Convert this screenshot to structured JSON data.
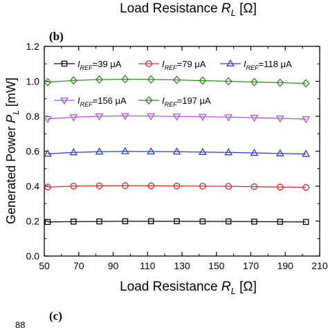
{
  "top_label": {
    "prefix": "Load Resistance ",
    "var": "R",
    "sub": "L",
    "unit": " [Ω]"
  },
  "panel_b": "(b)",
  "panel_c": "(c)",
  "next_tick": "88",
  "chart_data": {
    "type": "line",
    "title": "",
    "xlabel": {
      "prefix": "Load Resistance ",
      "var": "R",
      "sub": "L",
      "unit": " [Ω]"
    },
    "ylabel": {
      "prefix": "Generated Power ",
      "var": "P",
      "sub": "L",
      "unit": " [mW]"
    },
    "xlim": [
      50,
      210
    ],
    "ylim": [
      0.0,
      1.2
    ],
    "xticks": [
      "50",
      "70",
      "90",
      "110",
      "130",
      "150",
      "170",
      "190",
      "210"
    ],
    "yticks": [
      "0.0",
      "0.2",
      "0.4",
      "0.6",
      "0.8",
      "1.0",
      "1.2"
    ],
    "x": [
      52,
      67,
      82,
      97,
      112,
      127,
      142,
      157,
      172,
      187,
      202
    ],
    "grid": false,
    "legend_position": "top",
    "series": [
      {
        "legend_var": "I",
        "legend_sub": "REF",
        "legend_value": "=39 μA",
        "color": "#000000",
        "marker": "square",
        "values": [
          0.195,
          0.197,
          0.198,
          0.199,
          0.199,
          0.199,
          0.198,
          0.198,
          0.197,
          0.196,
          0.195
        ]
      },
      {
        "legend_var": "I",
        "legend_sub": "REF",
        "legend_value": "=79 μA",
        "color": "#e8262a",
        "marker": "circle",
        "values": [
          0.395,
          0.4,
          0.402,
          0.403,
          0.402,
          0.401,
          0.4,
          0.399,
          0.397,
          0.395,
          0.393
        ]
      },
      {
        "legend_var": "I",
        "legend_sub": "REF",
        "legend_value": "=118 μA",
        "color": "#2a3bd9",
        "marker": "triangle-up",
        "values": [
          0.585,
          0.593,
          0.597,
          0.599,
          0.598,
          0.597,
          0.595,
          0.593,
          0.59,
          0.587,
          0.584
        ]
      },
      {
        "legend_var": "I",
        "legend_sub": "REF",
        "legend_value": "=156 μA",
        "color": "#b44fe0",
        "marker": "triangle-down",
        "values": [
          0.785,
          0.795,
          0.8,
          0.802,
          0.801,
          0.799,
          0.797,
          0.795,
          0.792,
          0.788,
          0.784
        ]
      },
      {
        "legend_var": "I",
        "legend_sub": "REF",
        "legend_value": "=197 μA",
        "color": "#2e8b1f",
        "marker": "diamond",
        "values": [
          0.995,
          1.005,
          1.01,
          1.012,
          1.011,
          1.008,
          1.004,
          1.0,
          0.996,
          0.992,
          0.988
        ]
      }
    ]
  }
}
